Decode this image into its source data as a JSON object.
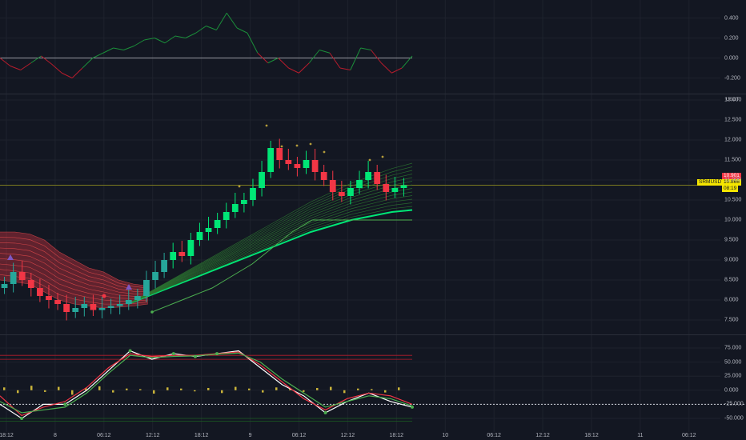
{
  "chart_data": [
    {
      "type": "line",
      "name_visible": false,
      "y_ticks": [
        "0.400",
        "0.200",
        "0.000",
        "-0.200"
      ],
      "y_tick_values": [
        0.4,
        0.2,
        0.0,
        -0.2
      ],
      "zero_line": 0.0,
      "series": [
        {
          "values": [
            0.0,
            -0.08,
            -0.12,
            -0.05,
            0.02,
            -0.06,
            -0.15,
            -0.2,
            -0.1,
            0.0,
            0.05,
            0.1,
            0.08,
            0.12,
            0.18,
            0.2,
            0.15,
            0.22,
            0.2,
            0.25,
            0.32,
            0.28,
            0.45,
            0.3,
            0.25,
            0.05,
            -0.05,
            0.0,
            -0.1,
            -0.15,
            -0.05,
            0.08,
            0.05,
            -0.1,
            -0.12,
            0.1,
            0.08,
            -0.05,
            -0.15,
            -0.1,
            0.02
          ],
          "color_up": "#26a69a",
          "color_down": "#f23645"
        }
      ]
    },
    {
      "type": "candlestick",
      "symbol": "SRMUSDT",
      "unit": "USDT",
      "y_ticks": [
        "13.000",
        "12.500",
        "12.000",
        "11.500",
        "11.000",
        "10.500",
        "10.000",
        "9.500",
        "9.000",
        "8.500",
        "8.000",
        "7.500"
      ],
      "y_tick_values": [
        13.0,
        12.5,
        12.0,
        11.5,
        11.0,
        10.5,
        10.0,
        9.5,
        9.0,
        8.5,
        8.0,
        7.5
      ],
      "price_label": "10.901",
      "last_price_label": "10.866",
      "countdown_label": "08:19",
      "horizontal_line": 10.87,
      "closes": [
        8.4,
        8.7,
        8.5,
        8.3,
        8.1,
        8.0,
        7.9,
        7.7,
        7.8,
        7.9,
        7.75,
        7.8,
        7.85,
        7.9,
        8.0,
        8.1,
        8.5,
        8.7,
        9.0,
        9.2,
        9.1,
        9.5,
        9.7,
        9.8,
        10.0,
        10.2,
        10.4,
        10.5,
        10.8,
        11.2,
        11.8,
        11.5,
        11.4,
        11.3,
        11.5,
        11.2,
        11.0,
        10.7,
        10.6,
        10.8,
        11.0,
        11.2,
        10.9,
        10.7,
        10.8,
        10.87
      ],
      "ribbon_upper": [
        9.7,
        9.7,
        9.65,
        9.5,
        9.2,
        9.0,
        8.8,
        8.7,
        8.5,
        8.4,
        8.35
      ],
      "ribbon_lower": [
        8.5,
        8.45,
        8.4,
        8.2,
        8.0,
        7.9,
        7.85,
        7.8,
        7.82,
        7.85,
        7.9
      ],
      "green_ribbon_base": [
        7.9,
        8.1,
        8.3,
        8.5,
        8.7,
        8.9,
        9.1,
        9.3,
        9.5,
        9.7,
        9.85,
        10.0,
        10.1,
        10.2,
        10.25
      ],
      "stop_line": [
        7.7,
        7.9,
        8.1,
        8.3,
        8.6,
        8.9,
        9.3,
        9.7,
        10.0,
        10.0,
        10.0,
        10.0,
        10.0,
        10.0
      ]
    },
    {
      "type": "line",
      "y_ticks": [
        "75.000",
        "50.000",
        "25.000",
        "0.000",
        "-25.000",
        "-50.000"
      ],
      "y_tick_values": [
        75,
        50,
        25,
        0,
        -25,
        -50
      ],
      "red_levels": [
        62,
        55
      ],
      "green_levels": [
        -55,
        -50
      ],
      "dotted_level": -25,
      "series": [
        {
          "color": "#ffffff",
          "values": [
            -25,
            -50,
            -25,
            -25,
            0,
            35,
            70,
            55,
            65,
            60,
            65,
            70,
            40,
            10,
            -10,
            -40,
            -20,
            -5,
            -20,
            -30
          ]
        },
        {
          "color": "#f23645",
          "values": [
            -10,
            -45,
            -30,
            -20,
            5,
            40,
            65,
            60,
            62,
            62,
            65,
            68,
            45,
            15,
            -15,
            -35,
            -15,
            -5,
            -10,
            -25
          ]
        },
        {
          "color": "#4caf50",
          "values": [
            -20,
            -40,
            -35,
            -30,
            -5,
            30,
            62,
            58,
            60,
            61,
            64,
            66,
            50,
            20,
            -5,
            -30,
            -20,
            -10,
            -15,
            -28
          ]
        }
      ],
      "histogram": [
        5,
        -5,
        8,
        -3,
        6,
        -8,
        4,
        7,
        -4,
        3,
        2,
        -6,
        5,
        3,
        -2,
        4,
        -5,
        6,
        3,
        -4,
        5,
        2,
        -3,
        4,
        6,
        -5,
        3,
        2,
        -4,
        5
      ]
    }
  ],
  "x_axis": {
    "labels": [
      "18:12",
      "8",
      "06:12",
      "12:12",
      "18:12",
      "9",
      "06:12",
      "12:12",
      "18:12",
      "10",
      "06:12",
      "12:12",
      "18:12",
      "11",
      "06:12"
    ]
  },
  "colors": {
    "background": "#131722",
    "up": "#26a69a",
    "down": "#f23645",
    "ribbon_green": "#00e676",
    "ribbon_red": "#ff5252",
    "badge_yellow": "#f5e600"
  }
}
